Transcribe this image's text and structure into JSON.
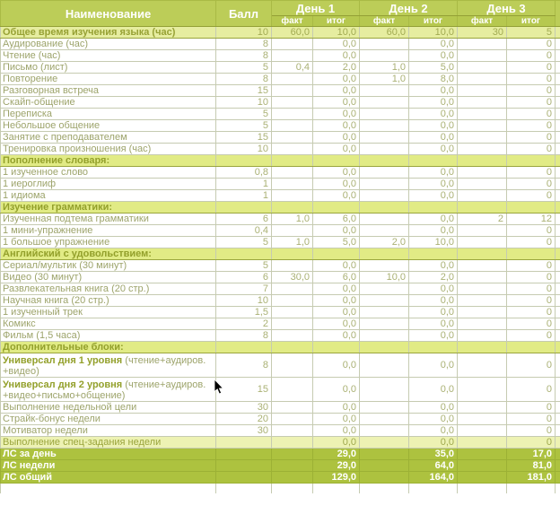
{
  "table": {
    "columns": {
      "name": "Наименование",
      "score": "Балл",
      "days": [
        {
          "label": "День 1",
          "fact": "факт",
          "total": "итог"
        },
        {
          "label": "День 2",
          "fact": "факт",
          "total": "итог"
        },
        {
          "label": "День 3",
          "fact": "факт",
          "total": "итог"
        }
      ]
    },
    "rows": [
      {
        "t": "highlight",
        "name": "Общее время изучения языка (час)",
        "score": "10",
        "c": [
          "60,0",
          "10,0",
          "60,0",
          "10,0",
          "30",
          "5"
        ]
      },
      {
        "t": "normal",
        "name": "Аудирование (час)",
        "score": "8",
        "c": [
          "",
          "0,0",
          "",
          "0,0",
          "",
          "0"
        ]
      },
      {
        "t": "normal",
        "name": "Чтение (час)",
        "score": "8",
        "c": [
          "",
          "0,0",
          "",
          "0,0",
          "",
          "0"
        ]
      },
      {
        "t": "normal",
        "name": "Письмо (лист)",
        "score": "5",
        "c": [
          "0,4",
          "2,0",
          "1,0",
          "5,0",
          "",
          "0"
        ]
      },
      {
        "t": "normal",
        "name": "Повторение",
        "score": "8",
        "c": [
          "",
          "0,0",
          "1,0",
          "8,0",
          "",
          "0"
        ]
      },
      {
        "t": "normal",
        "name": "Разговорная встреча",
        "score": "15",
        "c": [
          "",
          "0,0",
          "",
          "0,0",
          "",
          "0"
        ]
      },
      {
        "t": "normal",
        "name": "Скайп-общение",
        "score": "10",
        "c": [
          "",
          "0,0",
          "",
          "0,0",
          "",
          "0"
        ]
      },
      {
        "t": "normal",
        "name": "Переписка",
        "score": "5",
        "c": [
          "",
          "0,0",
          "",
          "0,0",
          "",
          "0"
        ]
      },
      {
        "t": "normal",
        "name": "Небольшое общение",
        "score": "5",
        "c": [
          "",
          "0,0",
          "",
          "0,0",
          "",
          "0"
        ]
      },
      {
        "t": "normal",
        "name": "Занятие с преподавателем",
        "score": "15",
        "c": [
          "",
          "0,0",
          "",
          "0,0",
          "",
          "0"
        ]
      },
      {
        "t": "normal",
        "name": "Тренировка произношения (час)",
        "score": "10",
        "c": [
          "",
          "0,0",
          "",
          "0,0",
          "",
          "0"
        ]
      },
      {
        "t": "section",
        "name": "Пополнение словаря:",
        "score": "",
        "c": [
          "",
          "",
          "",
          "",
          "",
          ""
        ]
      },
      {
        "t": "normal",
        "name": "1 изученное слово",
        "score": "0,8",
        "c": [
          "",
          "0,0",
          "",
          "0,0",
          "",
          "0"
        ]
      },
      {
        "t": "normal",
        "name": "1 иероглиф",
        "score": "1",
        "c": [
          "",
          "0,0",
          "",
          "0,0",
          "",
          "0"
        ]
      },
      {
        "t": "normal",
        "name": "1 идиома",
        "score": "1",
        "c": [
          "",
          "0,0",
          "",
          "0,0",
          "",
          "0"
        ]
      },
      {
        "t": "section",
        "name": "Изучение грамматики:",
        "score": "",
        "c": [
          "",
          "",
          "",
          "",
          "",
          ""
        ]
      },
      {
        "t": "normal",
        "name": "Изученная подтема грамматики",
        "score": "6",
        "c": [
          "1,0",
          "6,0",
          "",
          "0,0",
          "2",
          "12"
        ]
      },
      {
        "t": "normal",
        "name": "1 мини-упражнение",
        "score": "0,4",
        "c": [
          "",
          "0,0",
          "",
          "0,0",
          "",
          "0"
        ]
      },
      {
        "t": "normal",
        "name": "1 большое упражнение",
        "score": "5",
        "c": [
          "1,0",
          "5,0",
          "2,0",
          "10,0",
          "",
          "0"
        ]
      },
      {
        "t": "section",
        "name": "Английский с удовольствием:",
        "score": "",
        "c": [
          "",
          "",
          "",
          "",
          "",
          ""
        ]
      },
      {
        "t": "normal",
        "name": "Сериал/мультик (30 минут)",
        "score": "5",
        "c": [
          "",
          "0,0",
          "",
          "0,0",
          "",
          "0"
        ]
      },
      {
        "t": "normal",
        "name": "Видео (30 минут)",
        "score": "6",
        "c": [
          "30,0",
          "6,0",
          "10,0",
          "2,0",
          "",
          "0"
        ]
      },
      {
        "t": "normal",
        "name": "Развлекательная книга (20 стр.)",
        "score": "7",
        "c": [
          "",
          "0,0",
          "",
          "0,0",
          "",
          "0"
        ]
      },
      {
        "t": "normal",
        "name": "Научная книга (20 стр.)",
        "score": "10",
        "c": [
          "",
          "0,0",
          "",
          "0,0",
          "",
          "0"
        ]
      },
      {
        "t": "normal",
        "name": "1 изученный трек",
        "score": "1,5",
        "c": [
          "",
          "0,0",
          "",
          "0,0",
          "",
          "0"
        ]
      },
      {
        "t": "normal",
        "name": "Комикс",
        "score": "2",
        "c": [
          "",
          "0,0",
          "",
          "0,0",
          "",
          "0"
        ]
      },
      {
        "t": "normal",
        "name": "Фильм (1,5 часа)",
        "score": "8",
        "c": [
          "",
          "0,0",
          "",
          "0,0",
          "",
          "0"
        ]
      },
      {
        "t": "section",
        "name": "Дополнительные блоки:",
        "score": "",
        "c": [
          "",
          "",
          "",
          "",
          "",
          ""
        ]
      },
      {
        "t": "tall",
        "bold": "Универсал дня 1 уровня",
        "rest": "(чтение+аудиров. +видео)",
        "score": "8",
        "c": [
          "",
          "0,0",
          "",
          "0,0",
          "",
          "0"
        ]
      },
      {
        "t": "tall",
        "bold": "Универсал дня 2 уровня",
        "rest": "(чтение+аудиров. +видео+письмо+общение)",
        "score": "15",
        "c": [
          "",
          "0,0",
          "",
          "0,0",
          "",
          "0"
        ]
      },
      {
        "t": "normal",
        "name": "Выполнение недельной цели",
        "score": "30",
        "c": [
          "",
          "0,0",
          "",
          "0,0",
          "",
          "0"
        ]
      },
      {
        "t": "normal",
        "name": "Страйк-бонус недели",
        "score": "20",
        "c": [
          "",
          "0,0",
          "",
          "0,0",
          "",
          "0"
        ]
      },
      {
        "t": "normal",
        "name": "Мотиватор недели",
        "score": "30",
        "c": [
          "",
          "0,0",
          "",
          "0,0",
          "",
          "0"
        ]
      },
      {
        "t": "special",
        "name": "Выполнение спец-задания недели",
        "score": "",
        "c": [
          "",
          "0,0",
          "",
          "0,0",
          "",
          "0"
        ]
      },
      {
        "t": "summary",
        "name": "ЛС за день",
        "score": "",
        "c": [
          "",
          "29,0",
          "",
          "35,0",
          "",
          "17,0"
        ]
      },
      {
        "t": "summary",
        "name": "ЛС недели",
        "score": "",
        "c": [
          "",
          "29,0",
          "",
          "64,0",
          "",
          "81,0"
        ]
      },
      {
        "t": "summary",
        "name": "ЛС общий",
        "score": "",
        "c": [
          "",
          "129,0",
          "",
          "164,0",
          "",
          "181,0"
        ]
      }
    ]
  },
  "colors": {
    "header_bg": "#bccd58",
    "header_text": "#ffffff",
    "section_bg": "#e1eb85",
    "section_text": "#93a02b",
    "highlight_bg": "#e6eda0",
    "special_bg": "#edf2b3",
    "summary_bg": "#adc23f",
    "summary_text": "#ffffff",
    "body_text": "#9da46b",
    "grid_line": "#c6cbb1"
  }
}
